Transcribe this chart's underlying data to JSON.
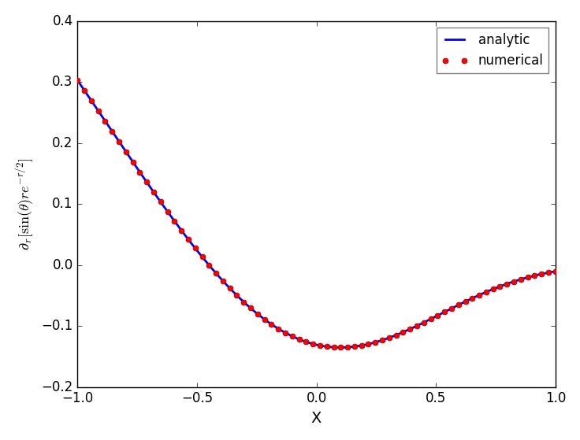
{
  "xlim": [
    -1.0,
    1.0
  ],
  "ylim": [
    -0.2,
    0.4
  ],
  "xlabel": "X",
  "ylabel": "$\\partial_r[\\sin(\\theta)re^{-r/2}]$",
  "n_analytic": 1000,
  "n_numerical": 70,
  "line_color": "blue",
  "dot_color": "red",
  "dot_size": 5,
  "line_width": 2,
  "legend_analytic": "analytic",
  "legend_numerical": "numerical",
  "yticks": [
    -0.2,
    -0.1,
    0.0,
    0.1,
    0.2,
    0.3,
    0.4
  ],
  "xticks": [
    -1.0,
    -0.5,
    0.0,
    0.5,
    1.0
  ]
}
